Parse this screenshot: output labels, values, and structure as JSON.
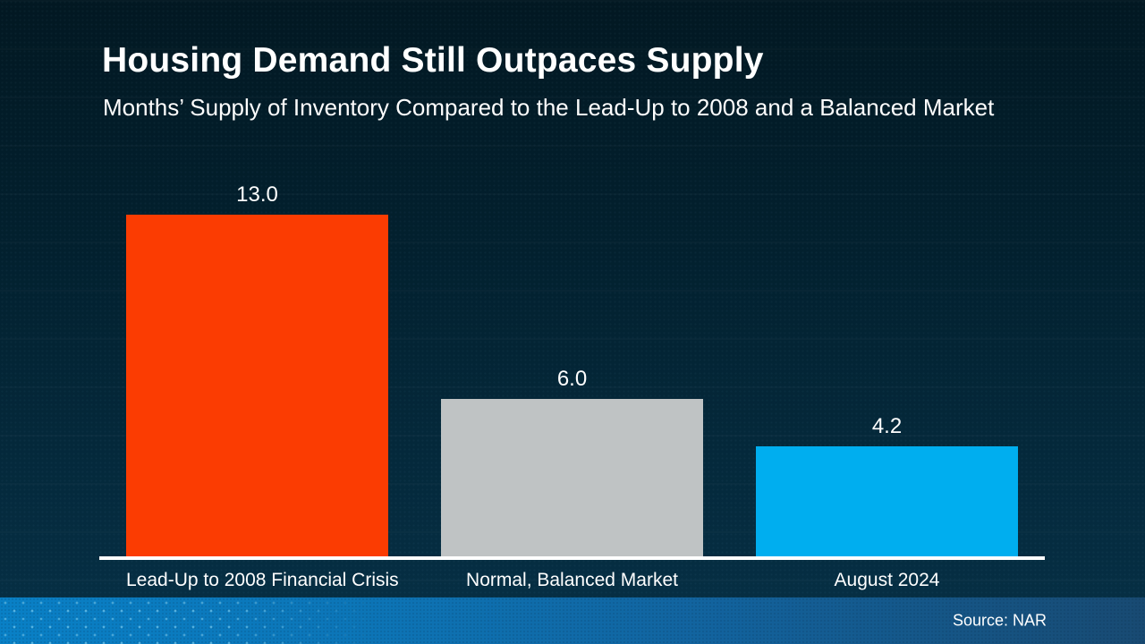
{
  "header": {
    "title": "Housing Demand Still Outpaces Supply",
    "subtitle": "Months’ Supply of Inventory Compared to the Lead-Up to 2008 and a Balanced Market"
  },
  "chart_data": {
    "type": "bar",
    "title": "Housing Demand Still Outpaces Supply",
    "subtitle": "Months’ Supply of Inventory Compared to the Lead-Up to 2008 and a Balanced Market",
    "categories": [
      "Lead-Up to 2008 Financial Crisis",
      "Normal, Balanced Market",
      "August 2024"
    ],
    "values": [
      13.0,
      6.0,
      4.2
    ],
    "xlabel": "",
    "ylabel": "",
    "ylim": [
      0,
      13
    ],
    "grid": false,
    "legend": false,
    "value_labels_shown": true,
    "axis_color": "#ffffff",
    "bars": [
      {
        "category": "Lead-Up to 2008 Financial Crisis",
        "value": 13.0,
        "value_label": "13.0",
        "color": "#fb3c02"
      },
      {
        "category": "Normal, Balanced Market",
        "value": 6.0,
        "value_label": "6.0",
        "color": "#bfc3c4"
      },
      {
        "category": "August 2024",
        "value": 4.2,
        "value_label": "4.2",
        "color": "#00aeef"
      }
    ]
  },
  "footer": {
    "source": "Source: NAR"
  },
  "colors": {
    "background_top": "#021822",
    "background_bottom": "#063046",
    "band_left": "#0980c6",
    "band_right": "#184a72",
    "text": "#ffffff"
  }
}
